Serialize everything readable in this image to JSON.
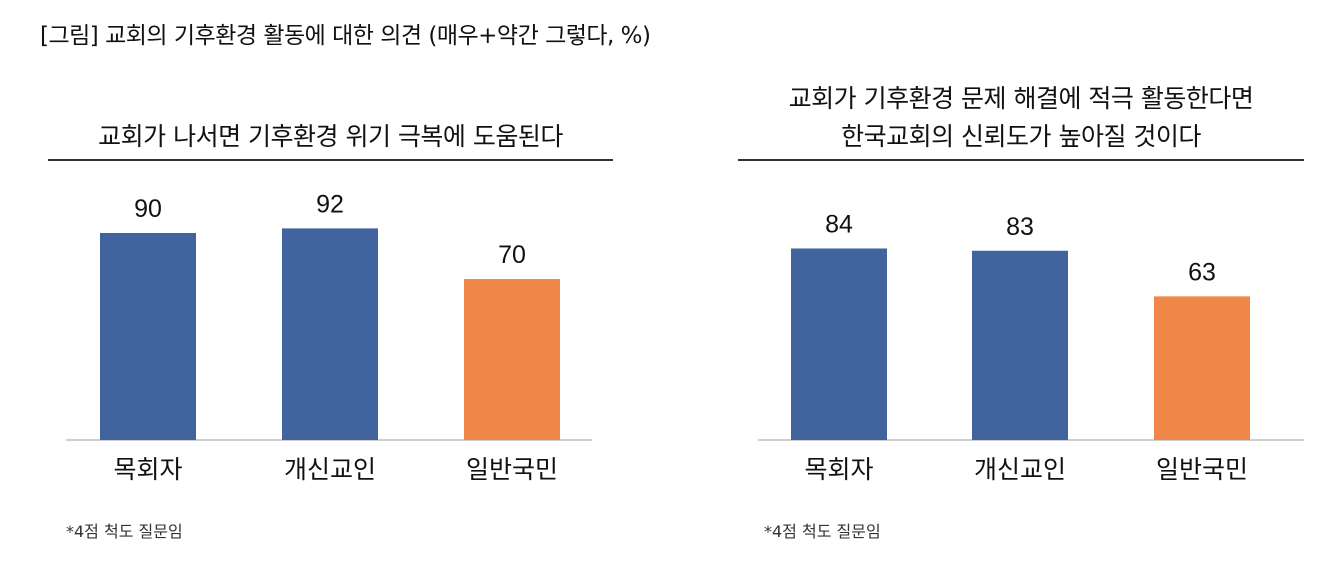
{
  "figure_title": "[그림] 교회의 기후환경 활동에 대한 의견 (매우+약간 그렇다, %)",
  "colors": {
    "blue": "#41649f",
    "orange": "#ef8748",
    "axis": "#bfbfbf"
  },
  "chart_data": [
    {
      "type": "bar",
      "title": "교회가 나서면 기후환경 위기 극복에 도움된다",
      "categories": [
        "목회자",
        "개신교인",
        "일반국민"
      ],
      "values": [
        90,
        92,
        70
      ],
      "bar_colors": [
        "#41649f",
        "#41649f",
        "#ef8748"
      ],
      "ylim": [
        0,
        100
      ],
      "grid": false,
      "data_labels": true,
      "note": "*4점 척도 질문임"
    },
    {
      "type": "bar",
      "title": "교회가 기후환경 문제 해결에 적극 활동한다면 한국교회의 신뢰도가 높아질 것이다",
      "title_lines": [
        "교회가 기후환경 문제 해결에 적극 활동한다면",
        "한국교회의 신뢰도가 높아질 것이다"
      ],
      "categories": [
        "목회자",
        "개신교인",
        "일반국민"
      ],
      "values": [
        84,
        83,
        63
      ],
      "bar_colors": [
        "#41649f",
        "#41649f",
        "#ef8748"
      ],
      "ylim": [
        0,
        100
      ],
      "grid": false,
      "data_labels": true,
      "note": "*4점 척도 질문임"
    }
  ]
}
